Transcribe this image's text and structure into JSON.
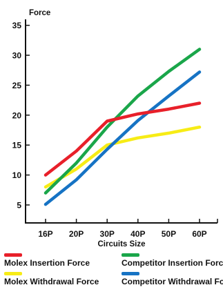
{
  "chart_data": {
    "type": "line",
    "ylabel": "Force",
    "xlabel": "Circuits Size",
    "categories": [
      "16P",
      "20P",
      "30P",
      "40P",
      "50P",
      "60P"
    ],
    "ylim": [
      2,
      36
    ],
    "yticks": [
      5,
      10,
      15,
      20,
      25,
      30,
      35
    ],
    "grid": false,
    "legend_position": "bottom",
    "series": [
      {
        "name": "Molex Insertion Force",
        "color": "#e8202a",
        "values": [
          10,
          14,
          19,
          20.2,
          21,
          22
        ]
      },
      {
        "name": "Competitor Insertion Force",
        "color": "#1aa64a",
        "values": [
          7,
          12,
          18,
          23.2,
          27.3,
          31
        ]
      },
      {
        "name": "Molex Withdrawal Force",
        "color": "#f7ec16",
        "values": [
          8,
          11,
          15,
          16.2,
          17,
          18
        ]
      },
      {
        "name": "Competitor Withdrawal Force",
        "color": "#1673c4",
        "values": [
          5.1,
          9.2,
          14.3,
          19.1,
          23.2,
          27.2
        ]
      }
    ]
  }
}
